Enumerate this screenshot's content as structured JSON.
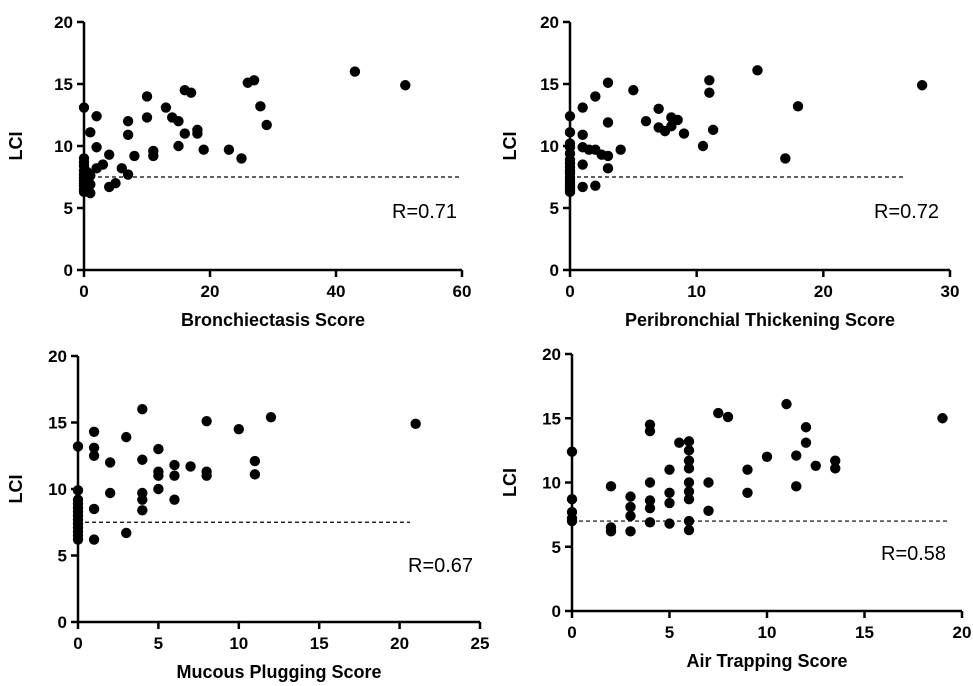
{
  "chart_data": [
    {
      "type": "scatter",
      "title": "",
      "xlabel": "Bronchiectasis Score",
      "ylabel": "LCI",
      "xlim": [
        0,
        60
      ],
      "ylim": [
        0,
        20
      ],
      "xticks": [
        "0",
        "20",
        "40",
        "60"
      ],
      "yticks": [
        "0",
        "5",
        "10",
        "15",
        "20"
      ],
      "reference_line": 7.5,
      "annotation": "R=0.71",
      "grid": false,
      "points": [
        [
          0,
          13.1
        ],
        [
          0,
          9.0
        ],
        [
          0,
          8.7
        ],
        [
          0,
          8.4
        ],
        [
          0,
          8.0
        ],
        [
          0,
          7.7
        ],
        [
          0,
          7.4
        ],
        [
          0,
          7.2
        ],
        [
          0,
          7.0
        ],
        [
          0,
          6.8
        ],
        [
          0,
          6.5
        ],
        [
          0,
          6.3
        ],
        [
          0.5,
          7.9
        ],
        [
          0.5,
          6.6
        ],
        [
          1,
          11.1
        ],
        [
          1,
          7.6
        ],
        [
          1,
          6.9
        ],
        [
          1,
          6.2
        ],
        [
          2,
          12.4
        ],
        [
          2,
          9.9
        ],
        [
          2,
          8.2
        ],
        [
          3,
          8.5
        ],
        [
          4,
          9.3
        ],
        [
          4,
          6.7
        ],
        [
          5,
          7.0
        ],
        [
          6,
          8.2
        ],
        [
          7,
          12.0
        ],
        [
          7,
          10.9
        ],
        [
          7,
          7.7
        ],
        [
          8,
          9.2
        ],
        [
          10,
          14.0
        ],
        [
          10,
          12.3
        ],
        [
          11,
          9.6
        ],
        [
          11,
          9.2
        ],
        [
          13,
          13.1
        ],
        [
          14,
          12.3
        ],
        [
          15,
          12.0
        ],
        [
          15,
          10.0
        ],
        [
          16,
          14.5
        ],
        [
          16,
          11.0
        ],
        [
          17,
          14.3
        ],
        [
          18,
          11.3
        ],
        [
          18,
          11.0
        ],
        [
          19,
          9.7
        ],
        [
          23,
          9.7
        ],
        [
          25,
          9.0
        ],
        [
          26,
          15.1
        ],
        [
          27,
          15.3
        ],
        [
          28,
          13.2
        ],
        [
          29,
          11.7
        ],
        [
          43,
          16.0
        ],
        [
          51,
          14.9
        ]
      ]
    },
    {
      "type": "scatter",
      "title": "",
      "xlabel": "Peribronchial Thickening Score",
      "ylabel": "LCI",
      "xlim": [
        0,
        30
      ],
      "ylim": [
        0,
        20
      ],
      "xticks": [
        "0",
        "10",
        "20",
        "30"
      ],
      "yticks": [
        "0",
        "5",
        "10",
        "15",
        "20"
      ],
      "reference_line": 7.5,
      "annotation": "R=0.72",
      "grid": false,
      "points": [
        [
          0,
          12.4
        ],
        [
          0,
          11.1
        ],
        [
          0,
          10.2
        ],
        [
          0,
          9.9
        ],
        [
          0,
          9.4
        ],
        [
          0,
          8.9
        ],
        [
          0,
          8.6
        ],
        [
          0,
          8.3
        ],
        [
          0,
          8.0
        ],
        [
          0,
          7.8
        ],
        [
          0,
          7.5
        ],
        [
          0,
          7.3
        ],
        [
          0,
          7.1
        ],
        [
          0,
          6.9
        ],
        [
          0,
          6.7
        ],
        [
          0,
          6.5
        ],
        [
          0,
          6.3
        ],
        [
          1,
          13.1
        ],
        [
          1,
          10.9
        ],
        [
          1,
          9.9
        ],
        [
          1,
          8.5
        ],
        [
          1,
          6.7
        ],
        [
          1.5,
          9.7
        ],
        [
          2,
          14.0
        ],
        [
          2,
          9.7
        ],
        [
          2,
          6.8
        ],
        [
          2.5,
          9.3
        ],
        [
          3,
          15.1
        ],
        [
          3,
          11.9
        ],
        [
          3,
          9.2
        ],
        [
          3,
          8.2
        ],
        [
          4,
          9.7
        ],
        [
          5,
          14.5
        ],
        [
          6,
          12.0
        ],
        [
          7,
          13.0
        ],
        [
          7,
          11.5
        ],
        [
          7.5,
          11.2
        ],
        [
          8,
          12.3
        ],
        [
          8,
          11.6
        ],
        [
          8.5,
          12.1
        ],
        [
          9,
          11.0
        ],
        [
          10.5,
          10.0
        ],
        [
          11,
          14.3
        ],
        [
          11,
          15.3
        ],
        [
          11.3,
          11.3
        ],
        [
          14.8,
          16.1
        ],
        [
          17,
          9.0
        ],
        [
          18,
          13.2
        ],
        [
          27.8,
          14.9
        ]
      ]
    },
    {
      "type": "scatter",
      "title": "",
      "xlabel": "Mucous Plugging Score",
      "ylabel": "LCI",
      "xlim": [
        0,
        25
      ],
      "ylim": [
        0,
        20
      ],
      "xticks": [
        "0",
        "5",
        "10",
        "15",
        "20",
        "25"
      ],
      "yticks": [
        "0",
        "5",
        "10",
        "15",
        "20"
      ],
      "reference_line": 7.5,
      "annotation": "R=0.67",
      "grid": false,
      "points": [
        [
          0,
          13.2
        ],
        [
          0,
          9.9
        ],
        [
          0,
          9.2
        ],
        [
          0,
          8.9
        ],
        [
          0,
          8.6
        ],
        [
          0,
          8.3
        ],
        [
          0,
          8.0
        ],
        [
          0,
          7.7
        ],
        [
          0,
          7.4
        ],
        [
          0,
          7.1
        ],
        [
          0,
          6.8
        ],
        [
          0,
          6.5
        ],
        [
          0,
          6.2
        ],
        [
          1,
          14.3
        ],
        [
          1,
          13.1
        ],
        [
          1,
          12.5
        ],
        [
          1,
          8.5
        ],
        [
          1,
          6.2
        ],
        [
          2,
          12.0
        ],
        [
          2,
          9.7
        ],
        [
          3,
          13.9
        ],
        [
          3,
          6.7
        ],
        [
          4,
          16.0
        ],
        [
          4,
          12.2
        ],
        [
          4,
          9.7
        ],
        [
          4,
          9.2
        ],
        [
          4,
          8.4
        ],
        [
          5,
          13.0
        ],
        [
          5,
          11.3
        ],
        [
          5,
          11.0
        ],
        [
          5,
          10.0
        ],
        [
          6,
          11.8
        ],
        [
          6,
          11.0
        ],
        [
          6,
          9.2
        ],
        [
          7,
          11.7
        ],
        [
          8,
          15.1
        ],
        [
          8,
          11.3
        ],
        [
          8,
          11.0
        ],
        [
          10,
          14.5
        ],
        [
          11,
          12.1
        ],
        [
          11,
          11.1
        ],
        [
          12,
          15.4
        ],
        [
          21,
          14.9
        ]
      ]
    },
    {
      "type": "scatter",
      "title": "",
      "xlabel": "Air Trapping Score",
      "ylabel": "LCI",
      "xlim": [
        0,
        20
      ],
      "ylim": [
        0,
        20
      ],
      "xticks": [
        "0",
        "5",
        "10",
        "15",
        "20"
      ],
      "yticks": [
        "0",
        "5",
        "10",
        "15",
        "20"
      ],
      "reference_line": 7.0,
      "annotation": "R=0.58",
      "grid": false,
      "points": [
        [
          0,
          12.4
        ],
        [
          0,
          8.7
        ],
        [
          0,
          7.7
        ],
        [
          0,
          7.2
        ],
        [
          0,
          7.0
        ],
        [
          2,
          9.7
        ],
        [
          2,
          6.5
        ],
        [
          2,
          6.2
        ],
        [
          3,
          8.9
        ],
        [
          3,
          8.1
        ],
        [
          3,
          7.4
        ],
        [
          3,
          6.2
        ],
        [
          4,
          14.5
        ],
        [
          4,
          14.0
        ],
        [
          4,
          10.0
        ],
        [
          4,
          8.6
        ],
        [
          4,
          8.0
        ],
        [
          4,
          6.9
        ],
        [
          5,
          11.0
        ],
        [
          5,
          9.2
        ],
        [
          5,
          8.4
        ],
        [
          5,
          6.8
        ],
        [
          5.5,
          13.1
        ],
        [
          6,
          13.2
        ],
        [
          6,
          12.5
        ],
        [
          6,
          11.7
        ],
        [
          6,
          11.1
        ],
        [
          6,
          10.0
        ],
        [
          6,
          9.3
        ],
        [
          6,
          8.7
        ],
        [
          6,
          7.0
        ],
        [
          6,
          6.3
        ],
        [
          7,
          10.0
        ],
        [
          7,
          7.8
        ],
        [
          7.5,
          15.4
        ],
        [
          8,
          15.1
        ],
        [
          9,
          11.0
        ],
        [
          9,
          9.2
        ],
        [
          10,
          12.0
        ],
        [
          11,
          16.1
        ],
        [
          11.5,
          12.1
        ],
        [
          11.5,
          9.7
        ],
        [
          12,
          14.3
        ],
        [
          12,
          13.1
        ],
        [
          12.5,
          11.3
        ],
        [
          13.5,
          11.7
        ],
        [
          13.5,
          11.1
        ],
        [
          19,
          15.0
        ]
      ]
    }
  ]
}
